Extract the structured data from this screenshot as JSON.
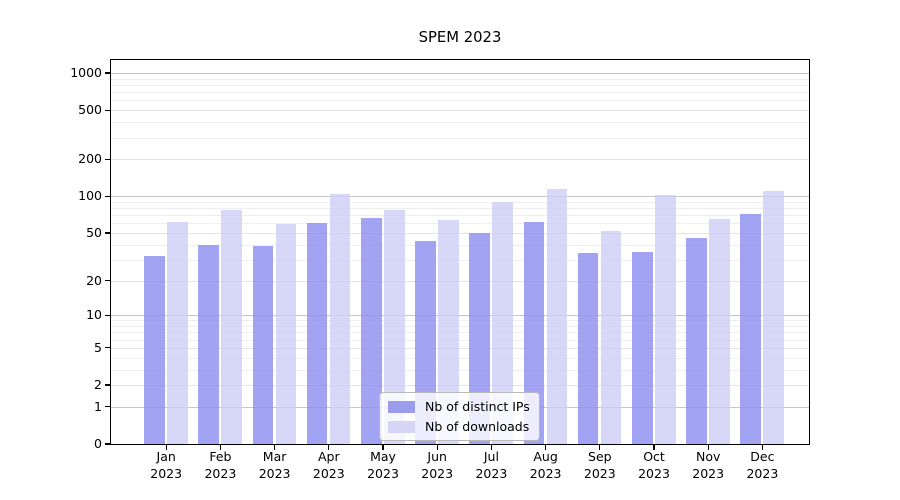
{
  "title": "SPEM 2023",
  "chart_data": {
    "type": "bar",
    "title": "SPEM 2023",
    "categories": [
      "Jan",
      "Feb",
      "Mar",
      "Apr",
      "May",
      "Jun",
      "Jul",
      "Aug",
      "Sep",
      "Oct",
      "Nov",
      "Dec"
    ],
    "category_year": "2023",
    "series": [
      {
        "name": "Nb of distinct IPs",
        "values": [
          32,
          40,
          39,
          60,
          66,
          43,
          50,
          62,
          34,
          35,
          45,
          71
        ],
        "fill": "rgba(140,140,240,0.8)",
        "legend_color": "#9c9cee"
      },
      {
        "name": "Nb of downloads",
        "values": [
          62,
          77,
          59,
          104,
          77,
          64,
          89,
          114,
          52,
          102,
          65,
          110
        ],
        "fill": "rgba(205,205,245,0.8)",
        "legend_color": "#d5d5f6"
      }
    ],
    "y_scale": "log10(1+y)",
    "y_ticks": [
      0,
      1,
      2,
      5,
      10,
      20,
      50,
      100,
      200,
      500,
      1000
    ],
    "ylim": [
      0,
      1300
    ],
    "xlabel": "",
    "ylabel": "",
    "legend_position": "lower center",
    "grid": {
      "major_lines": [
        1,
        10,
        100,
        1000
      ],
      "mid_lines": [
        2,
        5,
        20,
        50,
        200,
        500
      ],
      "minor_lines": [
        3,
        4,
        6,
        7,
        8,
        9,
        30,
        40,
        60,
        70,
        80,
        90,
        300,
        400,
        600,
        700,
        800,
        900
      ]
    },
    "colors": {
      "grid_major": "#c6c6c6",
      "grid_mid": "#e3e3e3",
      "grid_minor": "#efefef",
      "spine": "#000000",
      "background": "#ffffff"
    }
  }
}
